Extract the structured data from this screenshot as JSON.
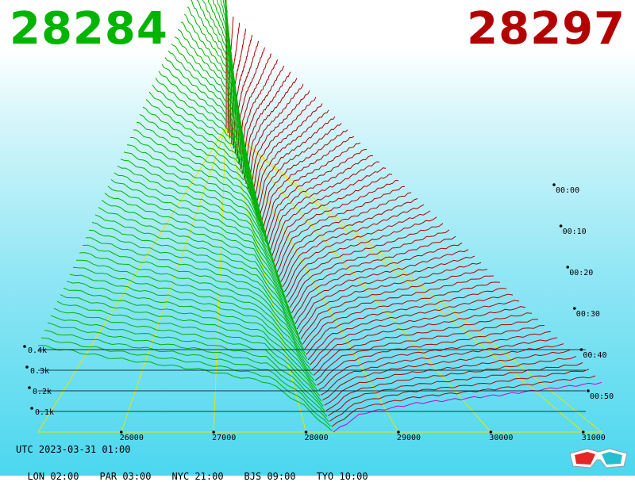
{
  "header": {
    "bid_price": "28284",
    "ask_price": "28297",
    "bid_color": "#00b400",
    "ask_color": "#b40000"
  },
  "footer": {
    "date_line": "UTC 2023-03-31 01:00",
    "clocks": [
      {
        "label": "LON 02:00"
      },
      {
        "label": "PAR 03:00"
      },
      {
        "label": "NYC 21:00"
      },
      {
        "label": "BJS 09:00"
      },
      {
        "label": "TYO 10:00"
      }
    ],
    "icon": "3d-glasses-icon"
  },
  "chart_data": {
    "type": "area",
    "title": "",
    "xlabel": "",
    "ylabel": "",
    "x_ticks": [
      "26000",
      "27000",
      "28000",
      "29000",
      "30000",
      "31000"
    ],
    "x_range": [
      25100,
      31200
    ],
    "y_ticks": [
      "0.1k",
      "0.2k",
      "0.3k",
      "0.4k"
    ],
    "y_range": [
      0,
      500
    ],
    "time_ticks": [
      "00:00",
      "00:10",
      "00:20",
      "00:30",
      "00:40",
      "00:50"
    ],
    "snapshot_count": 60,
    "bid_color": "#00b400",
    "ask_color": "#b40000",
    "latest_color": "#cc00cc",
    "grid_color": "#e6e600",
    "bid_depth_latest": [
      {
        "price": 25100,
        "depth": 420
      },
      {
        "price": 25900,
        "depth": 360
      },
      {
        "price": 26900,
        "depth": 300
      },
      {
        "price": 27600,
        "depth": 240
      },
      {
        "price": 28000,
        "depth": 120
      },
      {
        "price": 28284,
        "depth": 0
      }
    ],
    "ask_depth_latest": [
      {
        "price": 28297,
        "depth": 0
      },
      {
        "price": 28600,
        "depth": 90
      },
      {
        "price": 29200,
        "depth": 140
      },
      {
        "price": 30100,
        "depth": 180
      },
      {
        "price": 30800,
        "depth": 220
      },
      {
        "price": 31200,
        "depth": 240
      }
    ]
  }
}
